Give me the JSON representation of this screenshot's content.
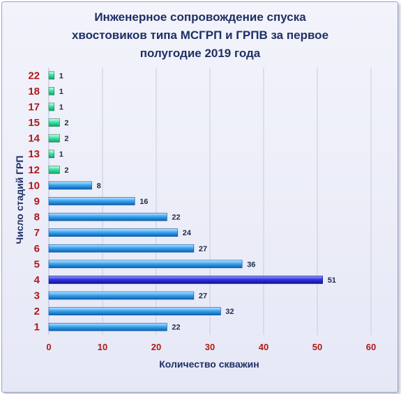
{
  "chart_data": {
    "type": "bar",
    "orientation": "horizontal",
    "title_lines": [
      "Инженерное  сопровождение  спуска",
      "хвостовиков  типа МСГРП и ГРПВ за первое",
      "полугодие  2019 года"
    ],
    "xlabel": "Количество скважин",
    "ylabel": "Число стадий ГРП",
    "categories": [
      "1",
      "2",
      "3",
      "4",
      "5",
      "6",
      "7",
      "8",
      "9",
      "10",
      "12",
      "13",
      "14",
      "15",
      "17",
      "18",
      "22"
    ],
    "values": [
      22,
      32,
      27,
      51,
      36,
      27,
      24,
      22,
      16,
      8,
      2,
      1,
      2,
      2,
      1,
      1,
      1
    ],
    "x_ticks": [
      "0",
      "10",
      "20",
      "30",
      "40",
      "50",
      "60"
    ],
    "xlim": [
      0,
      60
    ],
    "grid": "vertical",
    "colors": {
      "bar_blue": "#2a98e8",
      "bar_highlight": "#2c2ee0",
      "bar_green": "#3ee0a0",
      "tick_label": "#b01818",
      "title": "#1f2f63"
    }
  }
}
